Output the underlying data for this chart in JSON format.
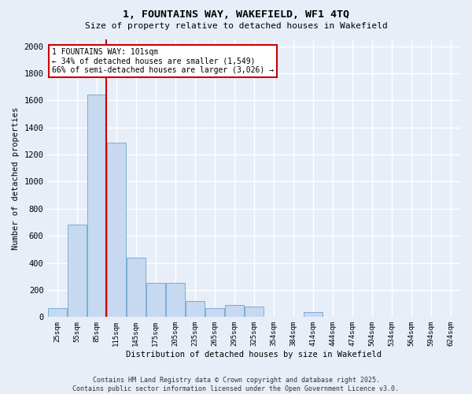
{
  "title": "1, FOUNTAINS WAY, WAKEFIELD, WF1 4TQ",
  "subtitle": "Size of property relative to detached houses in Wakefield",
  "xlabel": "Distribution of detached houses by size in Wakefield",
  "ylabel": "Number of detached properties",
  "bar_color": "#c6d9f0",
  "bar_edge_color": "#7aadd4",
  "background_color": "#e8eef8",
  "fig_facecolor": "#e8eef8",
  "grid_color": "#ffffff",
  "vline_color": "#cc0000",
  "vline_x": 2.5,
  "annotation_text": "1 FOUNTAINS WAY: 101sqm\n← 34% of detached houses are smaller (1,549)\n66% of semi-detached houses are larger (3,026) →",
  "annotation_box_facecolor": "#ffffff",
  "annotation_box_edgecolor": "#cc0000",
  "footer_text": "Contains HM Land Registry data © Crown copyright and database right 2025.\nContains public sector information licensed under the Open Government Licence v3.0.",
  "categories": [
    "25sqm",
    "55sqm",
    "85sqm",
    "115sqm",
    "145sqm",
    "175sqm",
    "205sqm",
    "235sqm",
    "265sqm",
    "295sqm",
    "325sqm",
    "354sqm",
    "384sqm",
    "414sqm",
    "444sqm",
    "474sqm",
    "504sqm",
    "534sqm",
    "564sqm",
    "594sqm",
    "624sqm"
  ],
  "values": [
    65,
    680,
    1640,
    1290,
    440,
    250,
    250,
    120,
    65,
    90,
    75,
    0,
    0,
    35,
    0,
    0,
    0,
    0,
    0,
    0,
    0
  ],
  "ylim": [
    0,
    2050
  ],
  "yticks": [
    0,
    200,
    400,
    600,
    800,
    1000,
    1200,
    1400,
    1600,
    1800,
    2000
  ]
}
